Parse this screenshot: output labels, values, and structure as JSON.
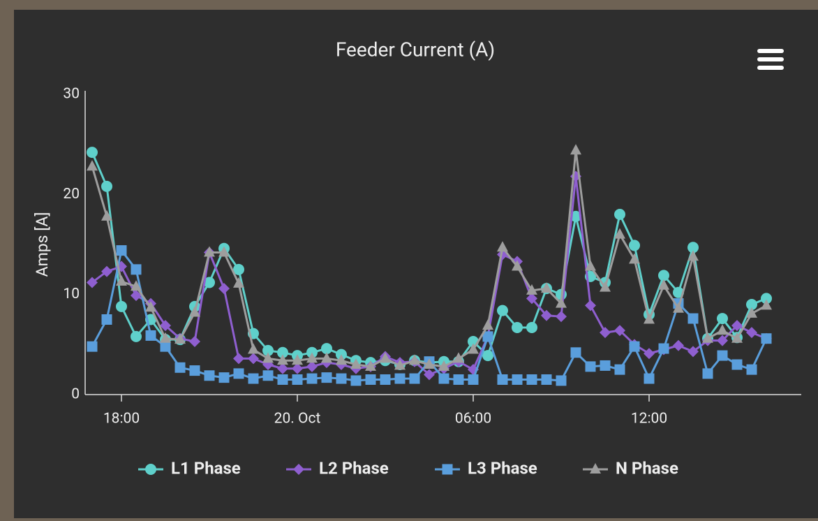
{
  "chart_data": {
    "type": "line",
    "title": "Feeder Current (A)",
    "y_label": "Amps [A]",
    "categories": [
      null,
      null,
      "18:00",
      null,
      null,
      null,
      null,
      null,
      null,
      null,
      null,
      null,
      null,
      null,
      "20. Oct",
      null,
      null,
      null,
      null,
      null,
      null,
      null,
      null,
      null,
      null,
      null,
      "06:00",
      null,
      null,
      null,
      null,
      null,
      null,
      null,
      null,
      null,
      null,
      null,
      "12:00",
      null,
      null,
      null,
      null,
      null,
      null,
      null,
      null
    ],
    "ylim": [
      0,
      30
    ],
    "yticks": [
      0,
      10,
      20,
      30
    ],
    "grid": false,
    "series": [
      {
        "name": "L1 Phase",
        "color": "#5fd0cb",
        "marker": "circle",
        "values": [
          24.2,
          20.8,
          8.8,
          5.8,
          7.5,
          5.5,
          5.5,
          8.8,
          11.2,
          14.6,
          12.5,
          6.1,
          4.4,
          4.2,
          3.9,
          4.2,
          4.6,
          4.0,
          3.4,
          3.2,
          3.4,
          3.0,
          3.4,
          3.2,
          3.3,
          3.3,
          5.3,
          3.9,
          8.4,
          6.7,
          6.7,
          10.6,
          10.0,
          17.8,
          11.8,
          11.2,
          18.0,
          14.9,
          8.0,
          11.9,
          10.2,
          14.7,
          5.6,
          7.6,
          5.7,
          9.0,
          9.6
        ]
      },
      {
        "name": "L2 Phase",
        "color": "#8f5fd0",
        "marker": "diamond",
        "values": [
          11.2,
          12.3,
          12.8,
          9.9,
          9.1,
          6.9,
          5.6,
          5.3,
          14.2,
          10.6,
          3.6,
          3.6,
          3.0,
          2.6,
          2.6,
          2.8,
          3.2,
          3.0,
          2.6,
          2.8,
          3.8,
          3.2,
          3.3,
          2.0,
          2.6,
          3.3,
          2.5,
          5.8,
          14.0,
          13.3,
          9.6,
          7.9,
          7.8,
          21.8,
          8.9,
          6.2,
          6.4,
          5.0,
          4.1,
          4.5,
          4.9,
          4.3,
          5.4,
          5.4,
          6.9,
          6.2,
          5.6
        ]
      },
      {
        "name": "L3 Phase",
        "color": "#5a9edc",
        "marker": "square",
        "values": [
          4.8,
          7.5,
          14.4,
          12.5,
          5.9,
          4.8,
          2.7,
          2.4,
          1.9,
          1.7,
          2.1,
          1.6,
          1.9,
          1.5,
          1.5,
          1.6,
          1.7,
          1.6,
          1.4,
          1.5,
          1.5,
          1.6,
          1.6,
          3.3,
          1.6,
          1.5,
          1.5,
          5.8,
          1.5,
          1.5,
          1.5,
          1.5,
          1.4,
          4.2,
          2.8,
          2.9,
          2.5,
          4.8,
          1.6,
          4.6,
          9.1,
          7.6,
          2.1,
          3.9,
          3.0,
          2.5,
          5.6
        ]
      },
      {
        "name": "N Phase",
        "color": "#9e9e9e",
        "marker": "triangle",
        "values": [
          22.8,
          17.8,
          11.3,
          10.8,
          8.7,
          5.6,
          5.5,
          8.2,
          14.2,
          14.2,
          11.1,
          4.5,
          3.6,
          3.4,
          3.4,
          3.6,
          3.6,
          3.4,
          3.0,
          2.8,
          3.6,
          2.9,
          3.4,
          3.0,
          2.8,
          3.6,
          4.5,
          6.9,
          14.7,
          12.8,
          10.4,
          10.6,
          9.1,
          24.4,
          12.8,
          10.7,
          16.0,
          13.5,
          7.5,
          10.9,
          8.6,
          13.8,
          5.6,
          6.4,
          5.6,
          8.1,
          8.9
        ]
      }
    ]
  }
}
